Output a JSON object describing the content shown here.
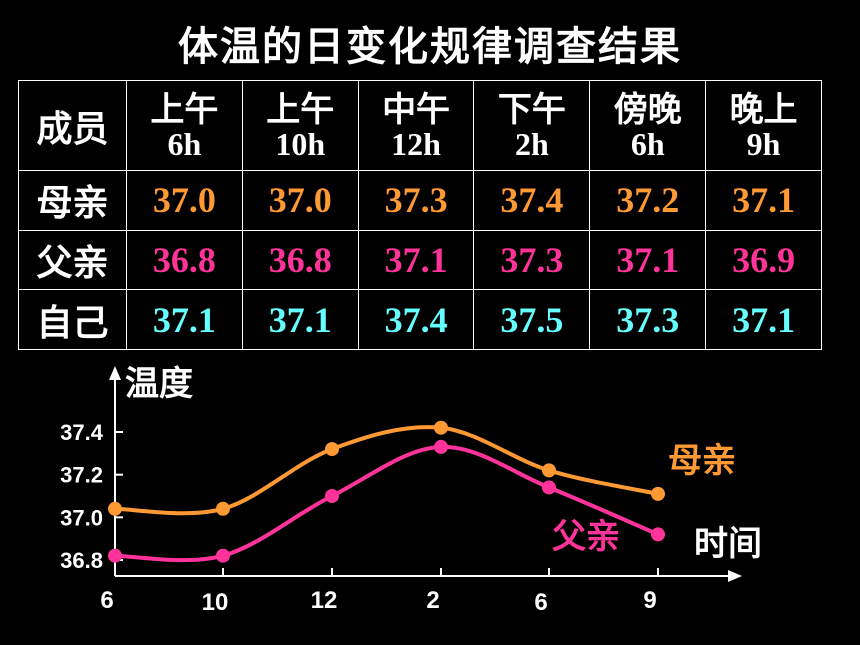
{
  "title": "体温的日变化规律调查结果",
  "table": {
    "corner": "成员",
    "columns": [
      {
        "top": "上午",
        "bottom": "6h"
      },
      {
        "top": "上午",
        "bottom": "10h"
      },
      {
        "top": "中午",
        "bottom": "12h"
      },
      {
        "top": "下午",
        "bottom": "2h"
      },
      {
        "top": "傍晚",
        "bottom": "6h"
      },
      {
        "top": "晚上",
        "bottom": "9h"
      }
    ],
    "rows": [
      {
        "member": "母亲",
        "color": "#ff9933",
        "values": [
          "37.0",
          "37.0",
          "37.3",
          "37.4",
          "37.2",
          "37.1"
        ]
      },
      {
        "member": "父亲",
        "color": "#ff3399",
        "values": [
          "36.8",
          "36.8",
          "37.1",
          "37.3",
          "37.1",
          "36.9"
        ]
      },
      {
        "member": "自己",
        "color": "#66ffff",
        "values": [
          "37.1",
          "37.1",
          "37.4",
          "37.5",
          "37.3",
          "37.1"
        ]
      }
    ]
  },
  "chart_data": {
    "type": "line",
    "ylabel": "温度",
    "xlabel": "时间",
    "categories": [
      "6",
      "10",
      "12",
      "2",
      "6",
      "9"
    ],
    "yticks": [
      "37.4",
      "37.2",
      "37.0",
      "36.8"
    ],
    "ylim": [
      36.8,
      37.4
    ],
    "grid": false,
    "series": [
      {
        "name": "母亲",
        "color": "#ff9933",
        "values": [
          37.04,
          37.04,
          37.32,
          37.42,
          37.22,
          37.11
        ]
      },
      {
        "name": "父亲",
        "color": "#ff3399",
        "values": [
          36.82,
          36.82,
          37.1,
          37.33,
          37.14,
          36.92
        ]
      }
    ]
  }
}
